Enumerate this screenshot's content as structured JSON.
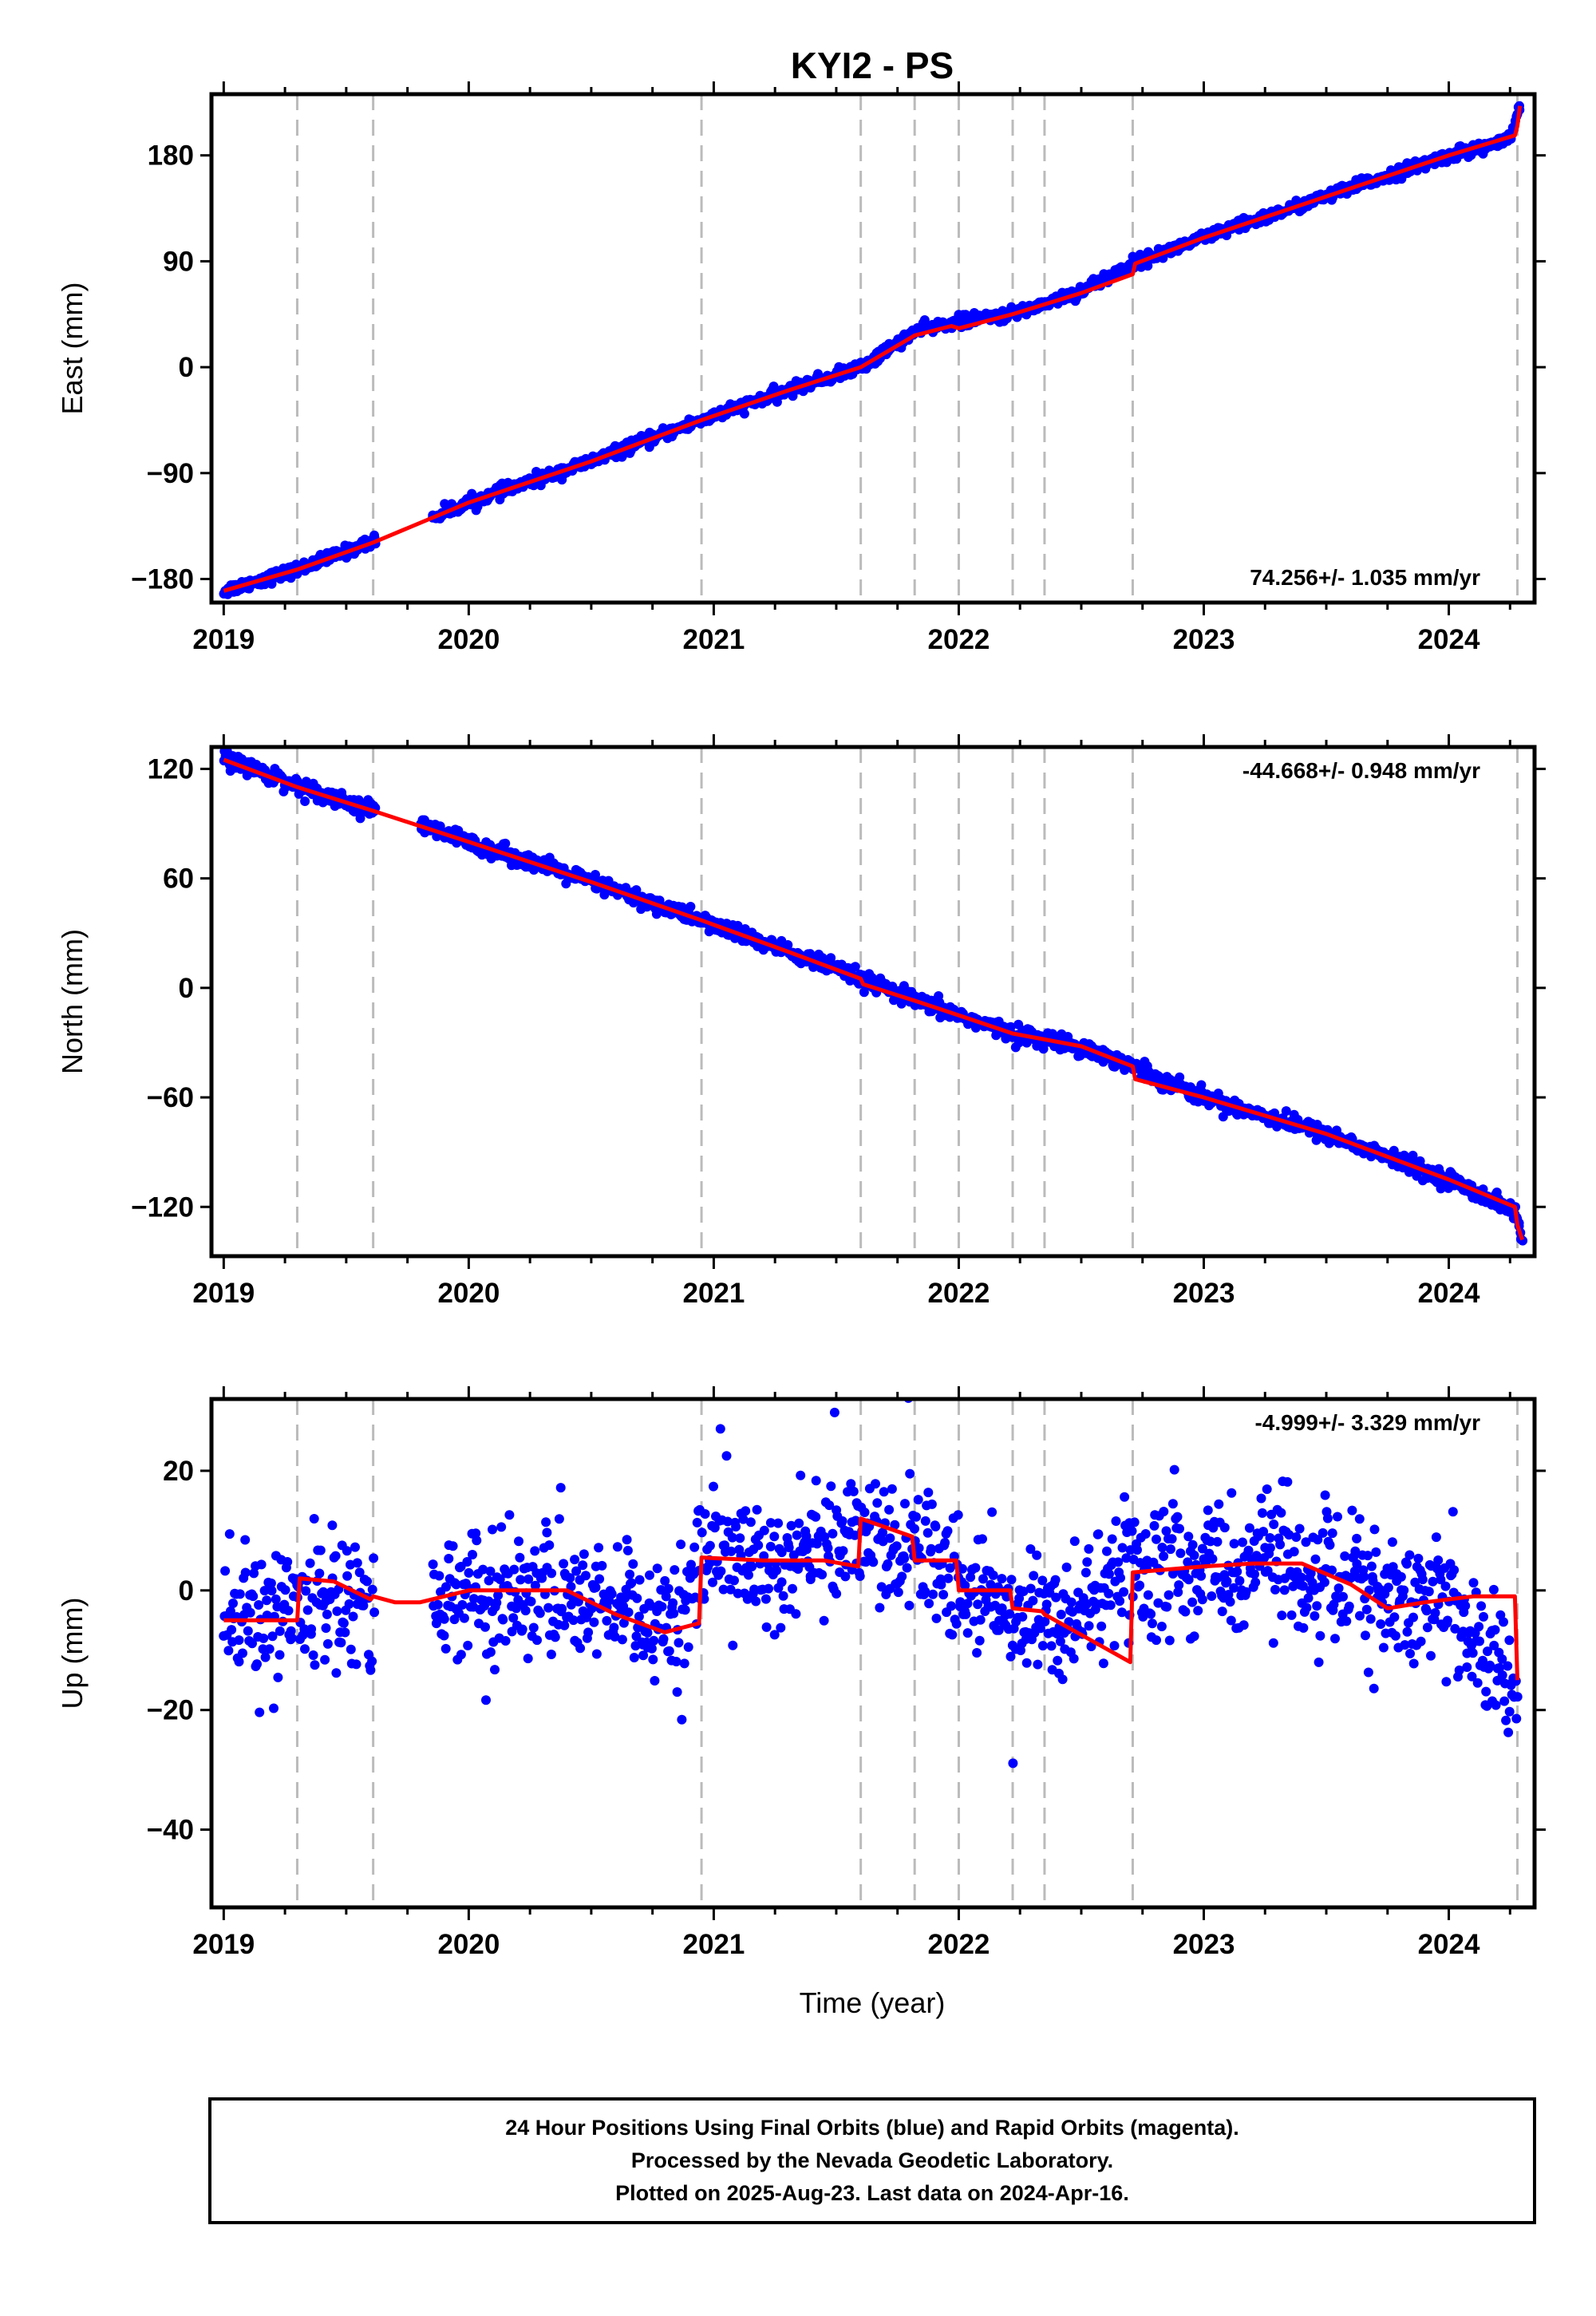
{
  "chart_data": {
    "type": "scatter",
    "title": "KYI2 - PS",
    "xlabel": "Time (year)",
    "x_ticks": [
      "2019",
      "2020",
      "2021",
      "2022",
      "2023",
      "2024"
    ],
    "xlim": [
      2018.95,
      2024.35
    ],
    "vertical_reference_lines": [
      2019.3,
      2019.61,
      2020.95,
      2021.6,
      2021.82,
      2022.0,
      2022.22,
      2022.35,
      2022.71,
      2024.28
    ],
    "colors": {
      "final_orbits": "#0000ff",
      "model": "#ff0000",
      "reference_lines": "#bbbbbb",
      "rapid_orbits": "#ff00ff"
    },
    "panels": [
      {
        "ylabel": "East (mm)",
        "ylim": [
          -200,
          232
        ],
        "y_ticks": [
          -180,
          -90,
          0,
          90,
          180
        ],
        "rate_text": "74.256+/- 1.035 mm/yr",
        "rate_position": "bottom-right",
        "series": [
          {
            "name": "Final Orbits",
            "x": [
              2019.0,
              2019.3,
              2019.61,
              2020.0,
              2020.5,
              2020.95,
              2021.3,
              2021.6,
              2021.82,
              2021.97,
              2022.22,
              2022.5,
              2022.71,
              2023.0,
              2023.5,
              2024.0,
              2024.25,
              2024.29
            ],
            "y": [
              -190,
              -172,
              -148,
              -115,
              -80,
              -45,
              -20,
              0,
              30,
              38,
              45,
              65,
              88,
              110,
              145,
              180,
              193,
              222
            ],
            "noise": 2.5
          }
        ],
        "model": {
          "x": [
            2019.0,
            2019.3,
            2019.61,
            2020.0,
            2020.5,
            2020.95,
            2021.3,
            2021.6,
            2021.82,
            2021.97,
            2022.0,
            2022.22,
            2022.5,
            2022.71,
            2022.72,
            2023.0,
            2023.5,
            2024.0,
            2024.27,
            2024.28,
            2024.29
          ],
          "y": [
            -190,
            -172,
            -149,
            -115,
            -80,
            -45,
            -20,
            0,
            27,
            35,
            33,
            45,
            63,
            79,
            88,
            110,
            145,
            180,
            197,
            205,
            222
          ]
        }
      },
      {
        "ylabel": "North (mm)",
        "ylim": [
          -147,
          132
        ],
        "y_ticks": [
          -120,
          -60,
          0,
          60,
          120
        ],
        "rate_text": "-44.668+/- 0.948 mm/yr",
        "rate_position": "top-right",
        "series": [
          {
            "name": "Final Orbits",
            "x": [
              2019.0,
              2019.3,
              2019.61,
              2020.0,
              2020.5,
              2020.95,
              2021.3,
              2021.6,
              2021.82,
              2022.0,
              2022.22,
              2022.5,
              2022.71,
              2023.0,
              2023.5,
              2024.0,
              2024.27,
              2024.3
            ],
            "y": [
              126,
              111,
              97,
              80,
              58,
              37,
              20,
              5,
              -7,
              -15,
              -25,
              -32,
              -43,
              -60,
              -80,
              -105,
              -122,
              -138
            ],
            "noise": 2.2
          }
        ],
        "model": {
          "x": [
            2019.0,
            2019.3,
            2019.61,
            2020.0,
            2020.5,
            2020.95,
            2021.3,
            2021.6,
            2021.61,
            2021.82,
            2022.0,
            2022.22,
            2022.5,
            2022.71,
            2022.72,
            2023.0,
            2023.5,
            2024.0,
            2024.27,
            2024.28,
            2024.3
          ],
          "y": [
            125,
            110,
            97,
            80,
            58,
            37,
            20,
            5,
            2,
            -7,
            -15,
            -25,
            -32,
            -43,
            -50,
            -60,
            -80,
            -105,
            -120,
            -130,
            -138
          ]
        }
      },
      {
        "ylabel": "Up (mm)",
        "ylim": [
          -53,
          32
        ],
        "y_ticks": [
          -40,
          -20,
          0,
          20
        ],
        "rate_text": "-4.999+/- 3.329 mm/yr",
        "rate_position": "top-right",
        "series": [
          {
            "name": "Final Orbits",
            "x": [
              2019.0,
              2019.3,
              2019.45,
              2019.61,
              2019.8,
              2020.0,
              2020.3,
              2020.6,
              2020.85,
              2020.95,
              2021.3,
              2021.6,
              2021.82,
              2022.0,
              2022.22,
              2022.35,
              2022.71,
              2023.0,
              2023.5,
              2023.75,
              2024.0,
              2024.28
            ],
            "y": [
              -5,
              -5,
              2,
              -3,
              -2,
              0,
              0,
              -4,
              -7,
              5,
              5,
              11,
              7,
              0,
              -3,
              -5,
              3,
              4,
              4,
              -3,
              -1,
              -18
            ],
            "noise": 5.5
          }
        ],
        "model": {
          "x": [
            2019.0,
            2019.3,
            2019.31,
            2019.45,
            2019.6,
            2019.61,
            2019.7,
            2019.8,
            2020.0,
            2020.2,
            2020.4,
            2020.6,
            2020.8,
            2020.94,
            2020.95,
            2021.2,
            2021.45,
            2021.59,
            2021.6,
            2021.81,
            2021.82,
            2021.99,
            2022.0,
            2022.21,
            2022.22,
            2022.34,
            2022.35,
            2022.7,
            2022.71,
            2023.0,
            2023.2,
            2023.4,
            2023.6,
            2023.75,
            2023.9,
            2024.1,
            2024.27,
            2024.28
          ],
          "y": [
            -5,
            -5,
            2,
            1.5,
            -1.5,
            -1,
            -2,
            -2,
            0,
            0,
            0,
            -4,
            -7,
            -5.5,
            5.5,
            5,
            5,
            4,
            12,
            9,
            5,
            5,
            0,
            0,
            -3,
            -3.5,
            -4,
            -12,
            3,
            4,
            4.5,
            4.5,
            1,
            -3,
            -2,
            -1,
            -1,
            -15
          ]
        }
      }
    ]
  },
  "footer": {
    "line1": "24 Hour Positions Using Final Orbits (blue) and Rapid Orbits (magenta).",
    "line2": "Processed by the Nevada Geodetic Laboratory.",
    "line3": "Plotted on 2025-Aug-23. Last data on 2024-Apr-16."
  }
}
